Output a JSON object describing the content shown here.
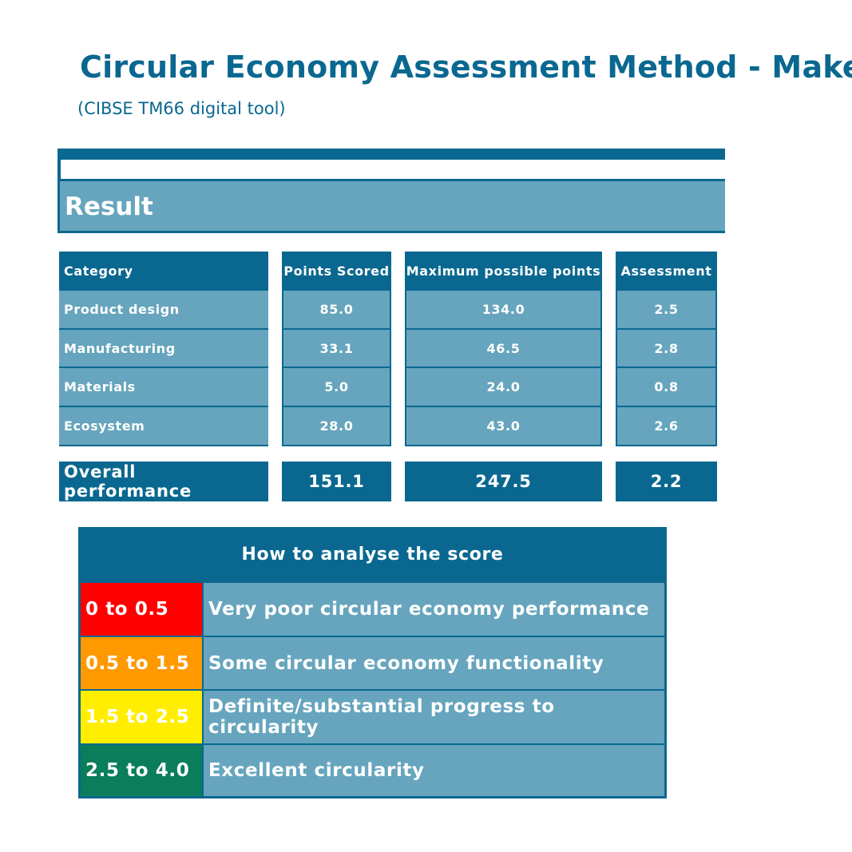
{
  "header": {
    "title": "Circular Economy Assessment Method - Make",
    "subtitle": "(CIBSE TM66 digital tool)"
  },
  "result": {
    "heading": "Result",
    "columns": [
      "Category",
      "Points Scored",
      "Maximum possible points",
      "Assessment"
    ],
    "rows": [
      {
        "category": "Product design",
        "points": "85.0",
        "max": "134.0",
        "assessment": "2.5"
      },
      {
        "category": "Manufacturing",
        "points": "33.1",
        "max": "46.5",
        "assessment": "2.8"
      },
      {
        "category": "Materials",
        "points": "5.0",
        "max": "24.0",
        "assessment": "0.8"
      },
      {
        "category": "Ecosystem",
        "points": "28.0",
        "max": "43.0",
        "assessment": "2.6"
      }
    ],
    "overall": {
      "label": "Overall performance",
      "points": "151.1",
      "max": "247.5",
      "assessment": "2.2"
    }
  },
  "legend": {
    "heading": "How to analyse the score",
    "items": [
      {
        "range": "0 to 0.5",
        "description": "Very poor circular economy performance",
        "color": "#ff0000"
      },
      {
        "range": "0.5 to 1.5",
        "description": "Some circular economy functionality",
        "color": "#ff9900"
      },
      {
        "range": "1.5 to 2.5",
        "description": "Definite/substantial progress to circularity",
        "color": "#ffee00"
      },
      {
        "range": "2.5 to 4.0",
        "description": "Excellent circularity",
        "color": "#0a7d5a"
      }
    ]
  },
  "colors": {
    "primary": "#0a6890",
    "light": "#66a5bd"
  }
}
